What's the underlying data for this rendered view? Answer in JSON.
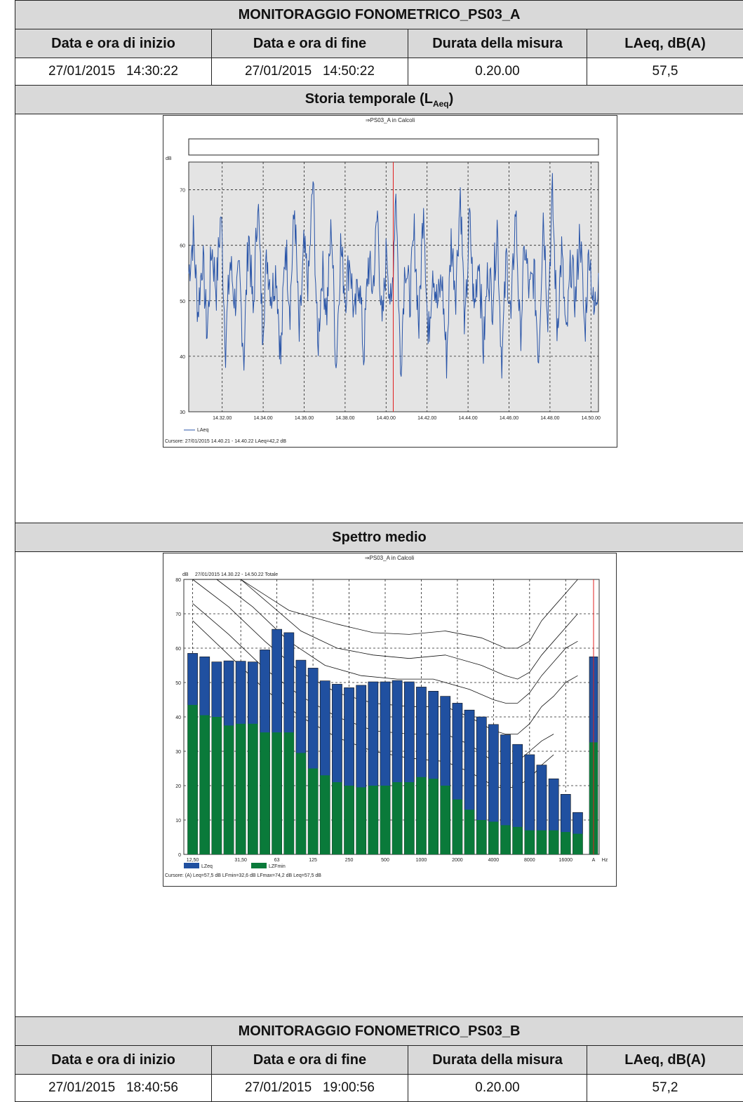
{
  "section_a": {
    "title": "MONITORAGGIO FONOMETRICO_PS03_A",
    "headers": [
      "Data e ora di inizio",
      "Data e ora di fine",
      "Durata della misura",
      "LAeq, dB(A)"
    ],
    "values": [
      "27/01/2015   14:30:22",
      "27/01/2015   14:50:22",
      "0.20.00",
      "57,5"
    ]
  },
  "time_history": {
    "section_title_main": "Storia temporale (L",
    "section_title_sub": "Aeq",
    "section_title_end": ")",
    "chart_title": "⇒PS03_A in Calcoli",
    "y_unit": "dB",
    "y_ticks": [
      "70",
      "60",
      "50",
      "40",
      "30"
    ],
    "x_ticks": [
      "14.32.00",
      "14.34.00",
      "14.36.00",
      "14.38.00",
      "14.40.00",
      "14.42.00",
      "14.44.00",
      "14.46.00",
      "14.48.00",
      "14.50.00"
    ],
    "legend": "LAeq",
    "cursor": "Cursore: 27/01/2015 14.40.21 - 14.40.22  LAeq=42,2 dB",
    "line_color": "#2a55a8",
    "cursor_color": "#e02020"
  },
  "spectrum": {
    "section_title": "Spettro medio",
    "chart_title": "⇒PS03_A in Calcoli",
    "subtitle": "27/01/2015 14.30.22 - 14.50.22  Totale",
    "y_unit": "dB",
    "y_ticks": [
      "80",
      "70",
      "60",
      "50",
      "40",
      "30",
      "20",
      "10",
      "0"
    ],
    "x_ticks": [
      "12,50",
      "31,50",
      "63",
      "125",
      "250",
      "500",
      "1000",
      "2000",
      "4000",
      "8000",
      "16000",
      "A",
      "Hz"
    ],
    "legend_lzeq": "LZeq",
    "legend_lzfmin": "LZFmin",
    "cursor": "Cursore: (A)  Leq=57,5 dB  LFmin=32,6 dB  LFmax=74,2 dB  Leq=57,5 dB",
    "lzeq_color": "#2050a0",
    "lzfmin_color": "#0a7a3a"
  },
  "section_b": {
    "title": "MONITORAGGIO FONOMETRICO_PS03_B",
    "headers": [
      "Data e ora di inizio",
      "Data e ora di fine",
      "Durata della misura",
      "LAeq, dB(A)"
    ],
    "values": [
      "27/01/2015   18:40:56",
      "27/01/2015   19:00:56",
      "0.20.00",
      "57,2"
    ]
  },
  "chart_data": [
    {
      "type": "line",
      "title": "⇒PS03_A in Calcoli",
      "ylabel": "dB",
      "ylim": [
        30,
        75
      ],
      "x_range": [
        "14.30.22",
        "14.50.22"
      ],
      "series": [
        {
          "name": "LAeq",
          "values": [
            55,
            62,
            48,
            58,
            44,
            60,
            52,
            66,
            42,
            57,
            50,
            54,
            40,
            63,
            47,
            69,
            45,
            58,
            51,
            56,
            39,
            61,
            49,
            67,
            43,
            59,
            53,
            72,
            41,
            56,
            48,
            64,
            38,
            60,
            51,
            58,
            46,
            55,
            40,
            57,
            52,
            66,
            44,
            60,
            47,
            71,
            37,
            58,
            50,
            62,
            45,
            69,
            42,
            57,
            49,
            54,
            39,
            61,
            52,
            70,
            44,
            65,
            48,
            59,
            41,
            56,
            50,
            64,
            38,
            58,
            46,
            67,
            43,
            60,
            51,
            55,
            40,
            66,
            48,
            69,
            45,
            59,
            42,
            57,
            50,
            63,
            44,
            60,
            47,
            55
          ]
        }
      ],
      "grid": true,
      "cursor_x": "14.40.21"
    },
    {
      "type": "bar",
      "title": "⇒PS03_A in Calcoli",
      "ylabel": "dB",
      "ylim": [
        0,
        80
      ],
      "categories": [
        "12,5",
        "16",
        "20",
        "25",
        "31,5",
        "40",
        "50",
        "63",
        "80",
        "100",
        "125",
        "160",
        "200",
        "250",
        "315",
        "400",
        "500",
        "630",
        "800",
        "1000",
        "1250",
        "1600",
        "2000",
        "2500",
        "3150",
        "4000",
        "5000",
        "6300",
        "8000",
        "10000",
        "12500",
        "16000",
        "20000",
        "A"
      ],
      "series": [
        {
          "name": "LZeq",
          "values": [
            58.5,
            57.5,
            56,
            56.3,
            56.2,
            56,
            59.5,
            65.5,
            64.5,
            56.5,
            54.2,
            50.5,
            49.5,
            48.5,
            49.2,
            50.2,
            50.2,
            50.6,
            50.2,
            48.7,
            47.5,
            46,
            44,
            42,
            40,
            37.8,
            34.8,
            32,
            29,
            26,
            22,
            17.5,
            12.2,
            57.5
          ]
        },
        {
          "name": "LZFmin",
          "values": [
            43.5,
            40.5,
            40,
            37.5,
            38,
            38,
            35.5,
            35.5,
            35.5,
            29.5,
            25,
            23,
            21,
            20,
            19.5,
            20,
            20,
            21,
            21,
            22.5,
            22,
            20,
            16,
            13,
            10,
            9.5,
            8.5,
            8,
            7,
            7,
            7,
            6.5,
            6,
            32.6
          ]
        }
      ],
      "grid": true
    }
  ]
}
